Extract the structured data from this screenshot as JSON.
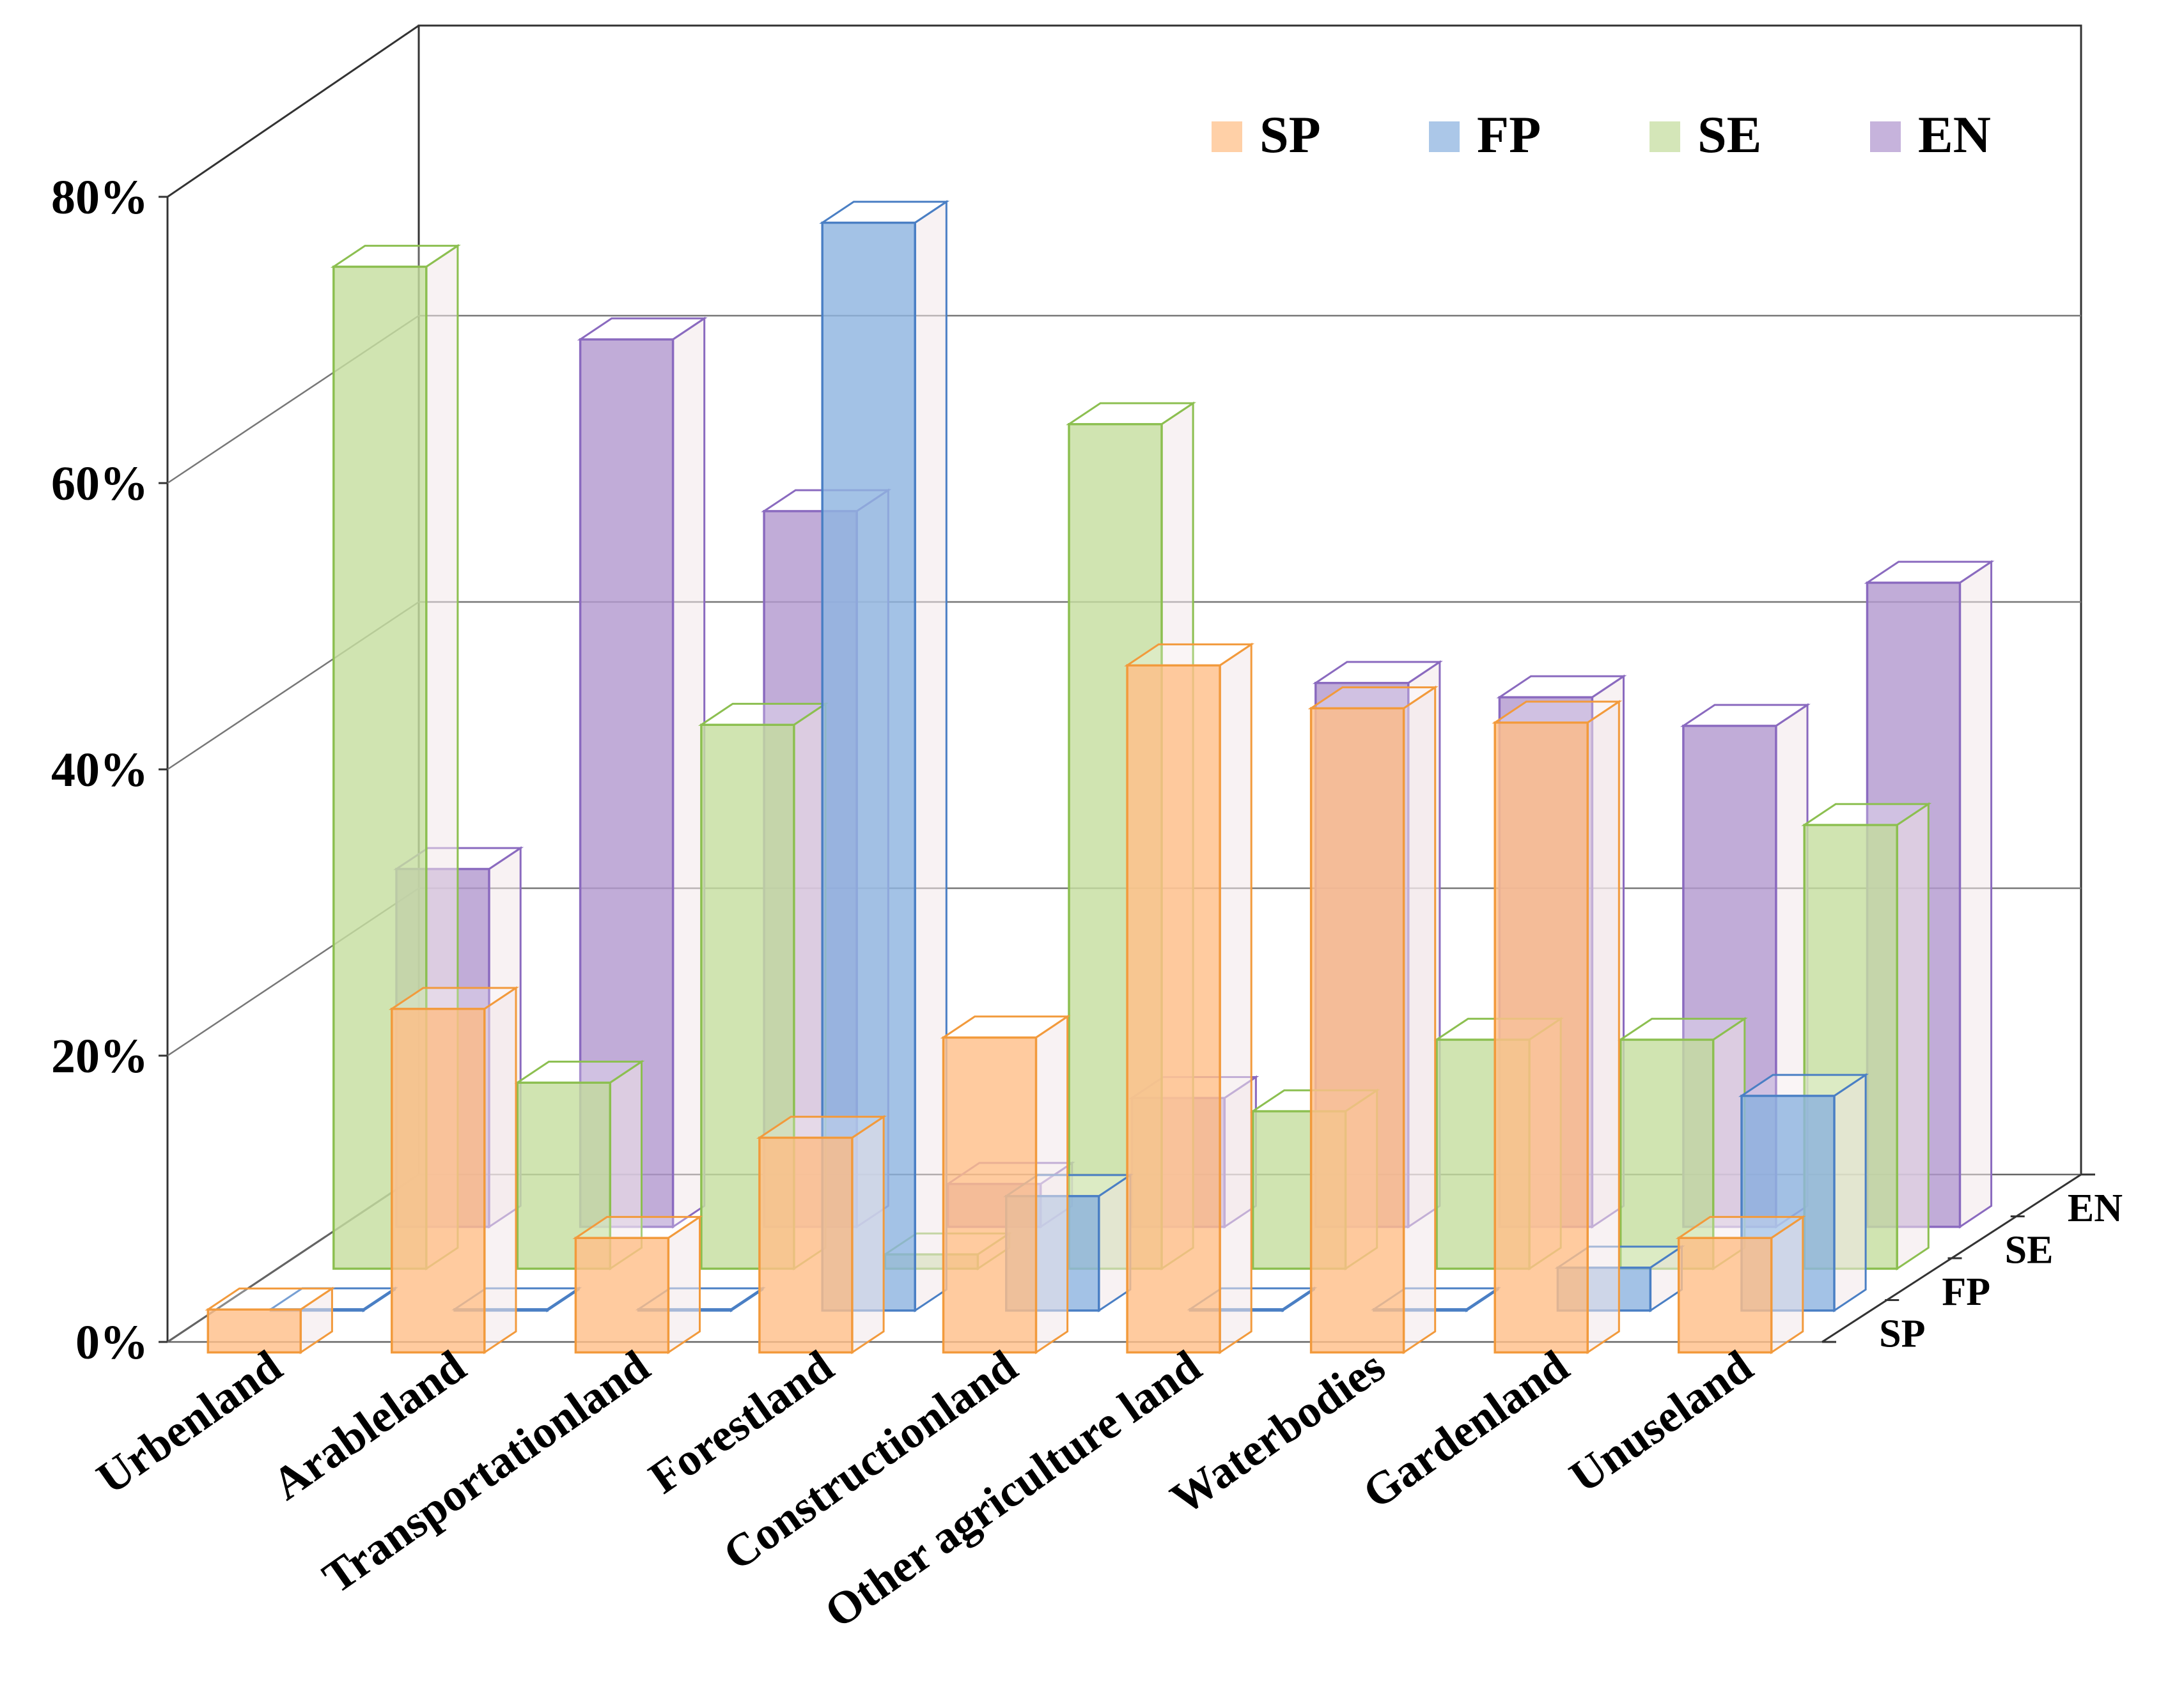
{
  "chart_data": {
    "type": "bar",
    "style": "3d-clustered-columns-with-depth",
    "categories": [
      "Urbenland",
      "Arableland",
      "Transportationland",
      "Forestland",
      "Constructionland",
      "Other agriculture land",
      "Waterbodies",
      "Gardenland",
      "Unuseland"
    ],
    "series": [
      {
        "name": "SP",
        "color": "#ffc08a",
        "edge": "#f29a3c",
        "values": [
          3,
          24,
          8,
          15,
          22,
          48,
          45,
          44,
          8
        ]
      },
      {
        "name": "FP",
        "color": "#8fb4e0",
        "edge": "#4a7fc4",
        "values": [
          0,
          0,
          0,
          76,
          8,
          0,
          0,
          3,
          15
        ]
      },
      {
        "name": "SE",
        "color": "#c6dea0",
        "edge": "#8cbf50",
        "values": [
          70,
          13,
          38,
          1,
          59,
          11,
          16,
          16,
          31
        ]
      },
      {
        "name": "EN",
        "color": "#b39ad0",
        "edge": "#8a6abf",
        "values": [
          25,
          62,
          50,
          3,
          9,
          38,
          37,
          35,
          45
        ]
      }
    ],
    "y_ticks": [
      "0%",
      "20%",
      "40%",
      "60%",
      "80%"
    ],
    "ylim": [
      0,
      80
    ],
    "depth_labels": [
      "SP",
      "FP",
      "SE",
      "EN"
    ],
    "legend": {
      "position": "top-right",
      "entries": [
        "SP",
        "FP",
        "SE",
        "EN"
      ]
    },
    "title": "",
    "xlabel": "",
    "ylabel": ""
  }
}
